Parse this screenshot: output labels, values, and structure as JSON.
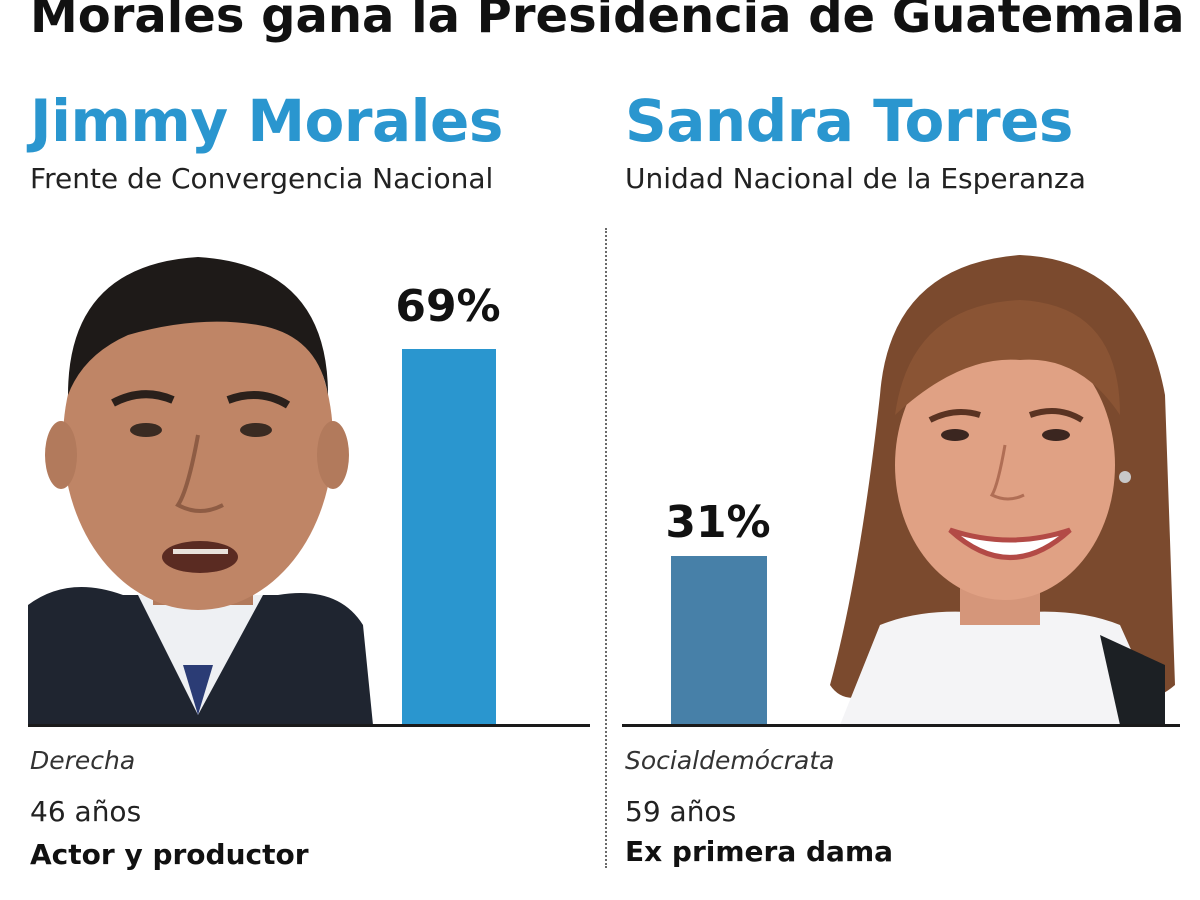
{
  "title": "Morales gana la Presidencia de Guatemala",
  "chart_data": {
    "type": "bar",
    "categories": [
      "Jimmy Morales",
      "Sandra Torres"
    ],
    "values": [
      69,
      31
    ],
    "value_labels": [
      "69%",
      "31%"
    ],
    "ylim": [
      0,
      100
    ],
    "colors": [
      "#2a96cf",
      "#4780a8"
    ],
    "title": "Morales gana la Presidencia de Guatemala",
    "xlabel": "",
    "ylabel": ""
  },
  "candidates": [
    {
      "name": "Jimmy Morales",
      "party": "Frente de Convergencia Nacional",
      "ideology": "Derecha",
      "age": "46 años",
      "occupation": "Actor y productor",
      "photo_icon": "man-portrait-icon"
    },
    {
      "name": "Sandra Torres",
      "party": "Unidad Nacional de la Esperanza",
      "ideology": "Socialdemócrata",
      "age": "59 años",
      "occupation": "Ex primera dama",
      "photo_icon": "woman-portrait-icon"
    }
  ]
}
